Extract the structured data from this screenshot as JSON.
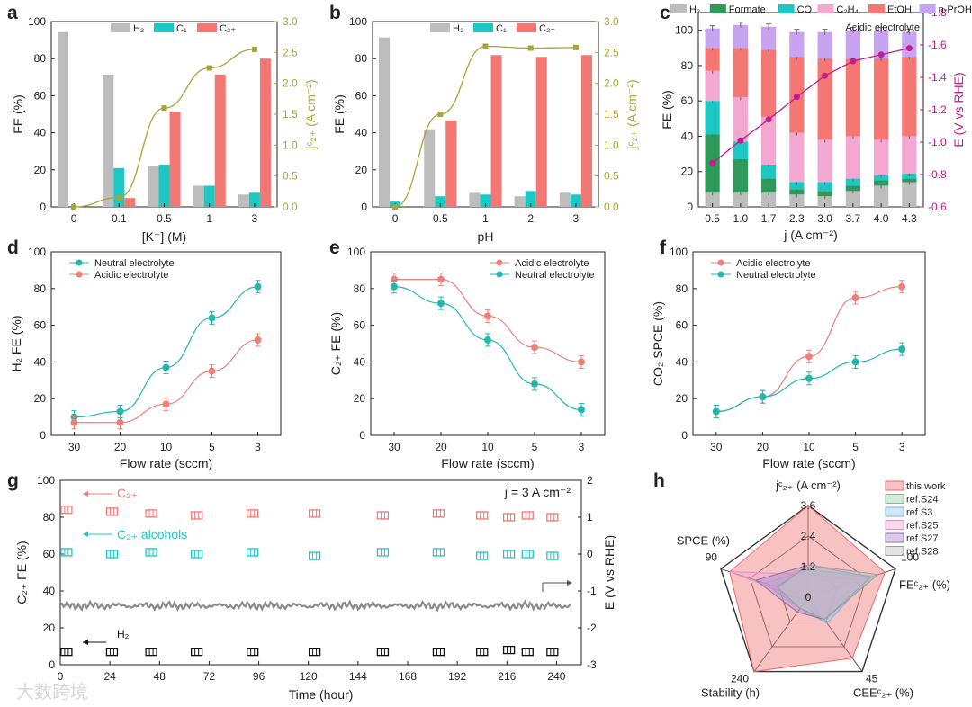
{
  "watermark": "大数跨境",
  "colors": {
    "h2": "#bdbdbd",
    "c1": "#1cc8c4",
    "c2": "#f47774",
    "olive": "#a7a537",
    "magenta": "#c0208e",
    "teal": "#22b8b0",
    "salmon": "#ee807a",
    "formate": "#2e9a5a",
    "c2h4": "#f3a8d2",
    "npro": "#c8a4f0"
  },
  "chart_data": [
    {
      "id": "a",
      "label": "a",
      "type": "bar",
      "categories": [
        "0",
        "0.1",
        "0.5",
        "1",
        "3"
      ],
      "xlabel": "[K⁺] (M)",
      "ylabel": "FE (%)",
      "y2label": "jᶜ₂₊ (A cm⁻²)",
      "ylim": [
        0,
        105
      ],
      "y2lim": [
        0,
        3.0
      ],
      "yticks": [
        "0",
        "20",
        "40",
        "60",
        "80",
        "100"
      ],
      "y2ticks": [
        "0.0",
        "0.5",
        "1.0",
        "1.5",
        "2.0",
        "2.5",
        "3.0"
      ],
      "series": [
        {
          "name": "H2",
          "legend": "H₂",
          "values": [
            99,
            75,
            23,
            12,
            7
          ]
        },
        {
          "name": "C1",
          "legend": "C₁",
          "values": [
            0,
            22,
            24,
            12,
            8
          ]
        },
        {
          "name": "C2+",
          "legend": "C₂₊",
          "values": [
            0,
            5,
            54,
            75,
            84
          ]
        }
      ],
      "line": {
        "name": "j C2+",
        "values": [
          0.0,
          0.15,
          1.6,
          2.25,
          2.55
        ]
      }
    },
    {
      "id": "b",
      "label": "b",
      "type": "bar",
      "categories": [
        "0",
        "0.5",
        "1",
        "2",
        "3"
      ],
      "xlabel": "pH",
      "ylabel": "FE (%)",
      "y2label": "jᶜ₂₊ (A cm⁻²)",
      "ylim": [
        0,
        105
      ],
      "y2lim": [
        0,
        3.0
      ],
      "yticks": [
        "0",
        "20",
        "40",
        "60",
        "80",
        "100"
      ],
      "y2ticks": [
        "0.0",
        "0.5",
        "1.0",
        "1.5",
        "2.0",
        "2.5",
        "3.0"
      ],
      "series": [
        {
          "name": "H2",
          "legend": "H₂",
          "values": [
            96,
            44,
            8,
            6,
            8
          ]
        },
        {
          "name": "C1",
          "legend": "C₁",
          "values": [
            3,
            6,
            7,
            9,
            7
          ]
        },
        {
          "name": "C2+",
          "legend": "C₂₊",
          "values": [
            0,
            49,
            86,
            85,
            86
          ]
        }
      ],
      "line": {
        "name": "j C2+",
        "values": [
          0.0,
          1.5,
          2.6,
          2.57,
          2.58
        ]
      }
    },
    {
      "id": "c",
      "label": "c",
      "type": "bar",
      "title": "Acidic electrolyte",
      "categories": [
        "0.5",
        "1.0",
        "1.7",
        "2.3",
        "3.0",
        "3.7",
        "4.0",
        "4.3"
      ],
      "xlabel": "j (A cm⁻²)",
      "ylabel": "FE (%)",
      "y2label": "E (V vs RHE)",
      "ylim": [
        0,
        110
      ],
      "y2lim": [
        -0.6,
        -1.8
      ],
      "yticks": [
        "0",
        "20",
        "40",
        "60",
        "80",
        "100"
      ],
      "y2ticks": [
        "-0.6",
        "-0.8",
        "-1.0",
        "-1.2",
        "-1.4",
        "-1.6",
        "-1.8"
      ],
      "stacked": true,
      "series": [
        {
          "name": "H2",
          "legend": "H₂",
          "values": [
            8,
            8,
            8,
            7,
            6,
            9,
            12,
            14
          ]
        },
        {
          "name": "Formate",
          "legend": "Formate",
          "values": [
            33,
            19,
            8,
            3,
            3,
            3,
            3,
            2
          ]
        },
        {
          "name": "CO",
          "legend": "CO",
          "values": [
            19,
            10,
            8,
            4,
            5,
            4,
            3,
            3
          ]
        },
        {
          "name": "C2H4",
          "legend": "C₂H₄",
          "values": [
            17,
            25,
            27,
            28,
            24,
            24,
            20,
            21
          ]
        },
        {
          "name": "EtOH",
          "legend": "EtOH",
          "values": [
            13,
            28,
            38,
            43,
            46,
            44,
            46,
            45
          ]
        },
        {
          "name": "n-PrOH",
          "legend": "n-PrOH",
          "values": [
            11,
            13,
            13,
            14,
            15,
            16,
            16,
            14
          ]
        }
      ],
      "line": {
        "name": "E",
        "values": [
          -0.87,
          -1.01,
          -1.14,
          -1.28,
          -1.41,
          -1.5,
          -1.54,
          -1.58
        ]
      }
    },
    {
      "id": "d",
      "label": "d",
      "type": "line",
      "categories": [
        "30",
        "20",
        "10",
        "5",
        "3"
      ],
      "xlabel": "Flow rate (sccm)",
      "ylabel": "H₂ FE (%)",
      "ylim": [
        0,
        100
      ],
      "yticks": [
        "0",
        "20",
        "40",
        "60",
        "80",
        "100"
      ],
      "series": [
        {
          "name": "Neutral electrolyte",
          "values": [
            10,
            13,
            37,
            64,
            81
          ]
        },
        {
          "name": "Acidic electrolyte",
          "values": [
            7,
            7,
            17,
            35,
            52
          ]
        }
      ]
    },
    {
      "id": "e",
      "label": "e",
      "type": "line",
      "categories": [
        "30",
        "20",
        "10",
        "5",
        "3"
      ],
      "xlabel": "Flow rate (sccm)",
      "ylabel": "C₂₊ FE (%)",
      "ylim": [
        0,
        100
      ],
      "yticks": [
        "0",
        "20",
        "40",
        "60",
        "80",
        "100"
      ],
      "series": [
        {
          "name": "Acidic electrolyte",
          "values": [
            85,
            85,
            65,
            48,
            40
          ]
        },
        {
          "name": "Neutral electrolyte",
          "values": [
            81,
            72,
            52,
            28,
            14
          ]
        }
      ]
    },
    {
      "id": "f",
      "label": "f",
      "type": "line",
      "categories": [
        "30",
        "20",
        "10",
        "5",
        "3"
      ],
      "xlabel": "Flow rate (sccm)",
      "ylabel": "CO₂ SPCE (%)",
      "ylim": [
        0,
        100
      ],
      "yticks": [
        "0",
        "20",
        "40",
        "60",
        "80",
        "100"
      ],
      "series": [
        {
          "name": "Acidic electrolyte",
          "values": [
            13,
            21,
            43,
            75,
            81
          ]
        },
        {
          "name": "Neutral electrolyte",
          "values": [
            13,
            21,
            31,
            40,
            47
          ]
        }
      ]
    },
    {
      "id": "g",
      "label": "g",
      "type": "scatter",
      "xlabel": "Time (hour)",
      "ylabel": "C₂₊ FE (%)",
      "y2label": "E (V vs RHE)",
      "xlim": [
        0,
        252
      ],
      "ylim": [
        0,
        100
      ],
      "y2lim": [
        -3,
        2
      ],
      "xticks": [
        "0",
        "24",
        "48",
        "72",
        "96",
        "120",
        "144",
        "168",
        "192",
        "216",
        "240"
      ],
      "yticks": [
        "0",
        "20",
        "40",
        "60",
        "80",
        "100"
      ],
      "y2ticks": [
        "-3",
        "-2",
        "-1",
        "0",
        "1",
        "2"
      ],
      "annotation": "j = 3 A cm⁻²",
      "labels": {
        "c2": "C₂₊",
        "alc": "C₂₊ alcohols",
        "h2": "H₂"
      },
      "series": [
        {
          "name": "C2+",
          "x": [
            3,
            25,
            44,
            66,
            93,
            123,
            156,
            183,
            204,
            217,
            226,
            238
          ],
          "y": [
            84,
            83,
            82,
            81,
            82,
            82,
            81,
            82,
            81,
            80,
            81,
            80
          ]
        },
        {
          "name": "C2+ alcohols",
          "x": [
            3,
            25,
            44,
            66,
            93,
            123,
            156,
            183,
            204,
            217,
            226,
            238
          ],
          "y": [
            61,
            60,
            61,
            60,
            61,
            59,
            61,
            61,
            59,
            60,
            60,
            59
          ]
        },
        {
          "name": "H2",
          "x": [
            3,
            25,
            44,
            66,
            93,
            123,
            156,
            183,
            204,
            217,
            226,
            238
          ],
          "y": [
            7,
            7,
            7,
            7,
            7,
            7,
            7,
            7,
            7,
            8,
            7,
            7
          ]
        },
        {
          "name": "E",
          "x_range": [
            0,
            248
          ],
          "y_mean": -1.4
        }
      ]
    },
    {
      "id": "h",
      "label": "h",
      "type": "radar",
      "axes": [
        {
          "name": "j C2+ (A cm⁻²)",
          "max": 3.6
        },
        {
          "name": "FE C2+ (%)",
          "max": 100
        },
        {
          "name": "CEE C2+ (%)",
          "max": 45
        },
        {
          "name": "Stability (h)",
          "max": 240
        },
        {
          "name": "SPCE (%)",
          "max": 90
        }
      ],
      "axis_labels": [
        "jᶜ₂₊ (A cm⁻²)",
        "FEᶜ₂₊ (%)",
        "CEEᶜ₂₊ (%)",
        "Stability (h)",
        "SPCE (%)"
      ],
      "max_labels": [
        "3.6",
        "100",
        "45",
        "240",
        "90"
      ],
      "ring_labels": [
        "0",
        "1.2",
        "2.4"
      ],
      "series": [
        {
          "name": "this work",
          "values": [
            1.0,
            0.88,
            0.82,
            1.0,
            0.9
          ]
        },
        {
          "name": "ref.S24",
          "values": [
            0.3,
            0.75,
            0.3,
            0.1,
            0.38
          ]
        },
        {
          "name": "ref.S3",
          "values": [
            0.3,
            0.7,
            0.35,
            0.15,
            0.5
          ]
        },
        {
          "name": "ref.S25",
          "values": [
            0.25,
            0.6,
            0.25,
            0.05,
            0.9
          ]
        },
        {
          "name": "ref.S27",
          "values": [
            0.35,
            0.72,
            0.3,
            0.2,
            0.6
          ]
        },
        {
          "name": "ref.S28",
          "values": [
            0.35,
            0.8,
            0.3,
            0.15,
            0.35
          ]
        }
      ]
    }
  ]
}
